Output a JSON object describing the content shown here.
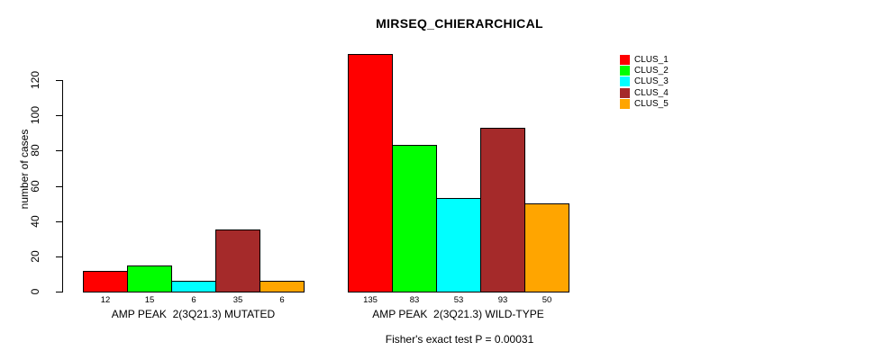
{
  "title": "MIRSEQ_CHIERARCHICAL",
  "chart_data": {
    "type": "bar",
    "title": "MIRSEQ_CHIERARCHICAL",
    "ylabel": "number of cases",
    "xlabel": "",
    "ylim": [
      0,
      135
    ],
    "yticks": [
      0,
      20,
      40,
      60,
      80,
      100,
      120
    ],
    "grid": false,
    "legend_position": "top-right",
    "series": [
      {
        "name": "CLUS_1",
        "color": "#FF0000"
      },
      {
        "name": "CLUS_2",
        "color": "#00FF00"
      },
      {
        "name": "CLUS_3",
        "color": "#00FFFF"
      },
      {
        "name": "CLUS_4",
        "color": "#A52A2A"
      },
      {
        "name": "CLUS_5",
        "color": "#FFA500"
      }
    ],
    "groups": [
      {
        "label": "AMP PEAK  2(3Q21.3) MUTATED",
        "values": [
          12,
          15,
          6,
          35,
          6
        ]
      },
      {
        "label": "AMP PEAK  2(3Q21.3) WILD-TYPE",
        "values": [
          135,
          83,
          53,
          93,
          50
        ]
      }
    ],
    "bar_value_labels_shown": true,
    "note": "Fisher's exact test P = 0.00031"
  }
}
